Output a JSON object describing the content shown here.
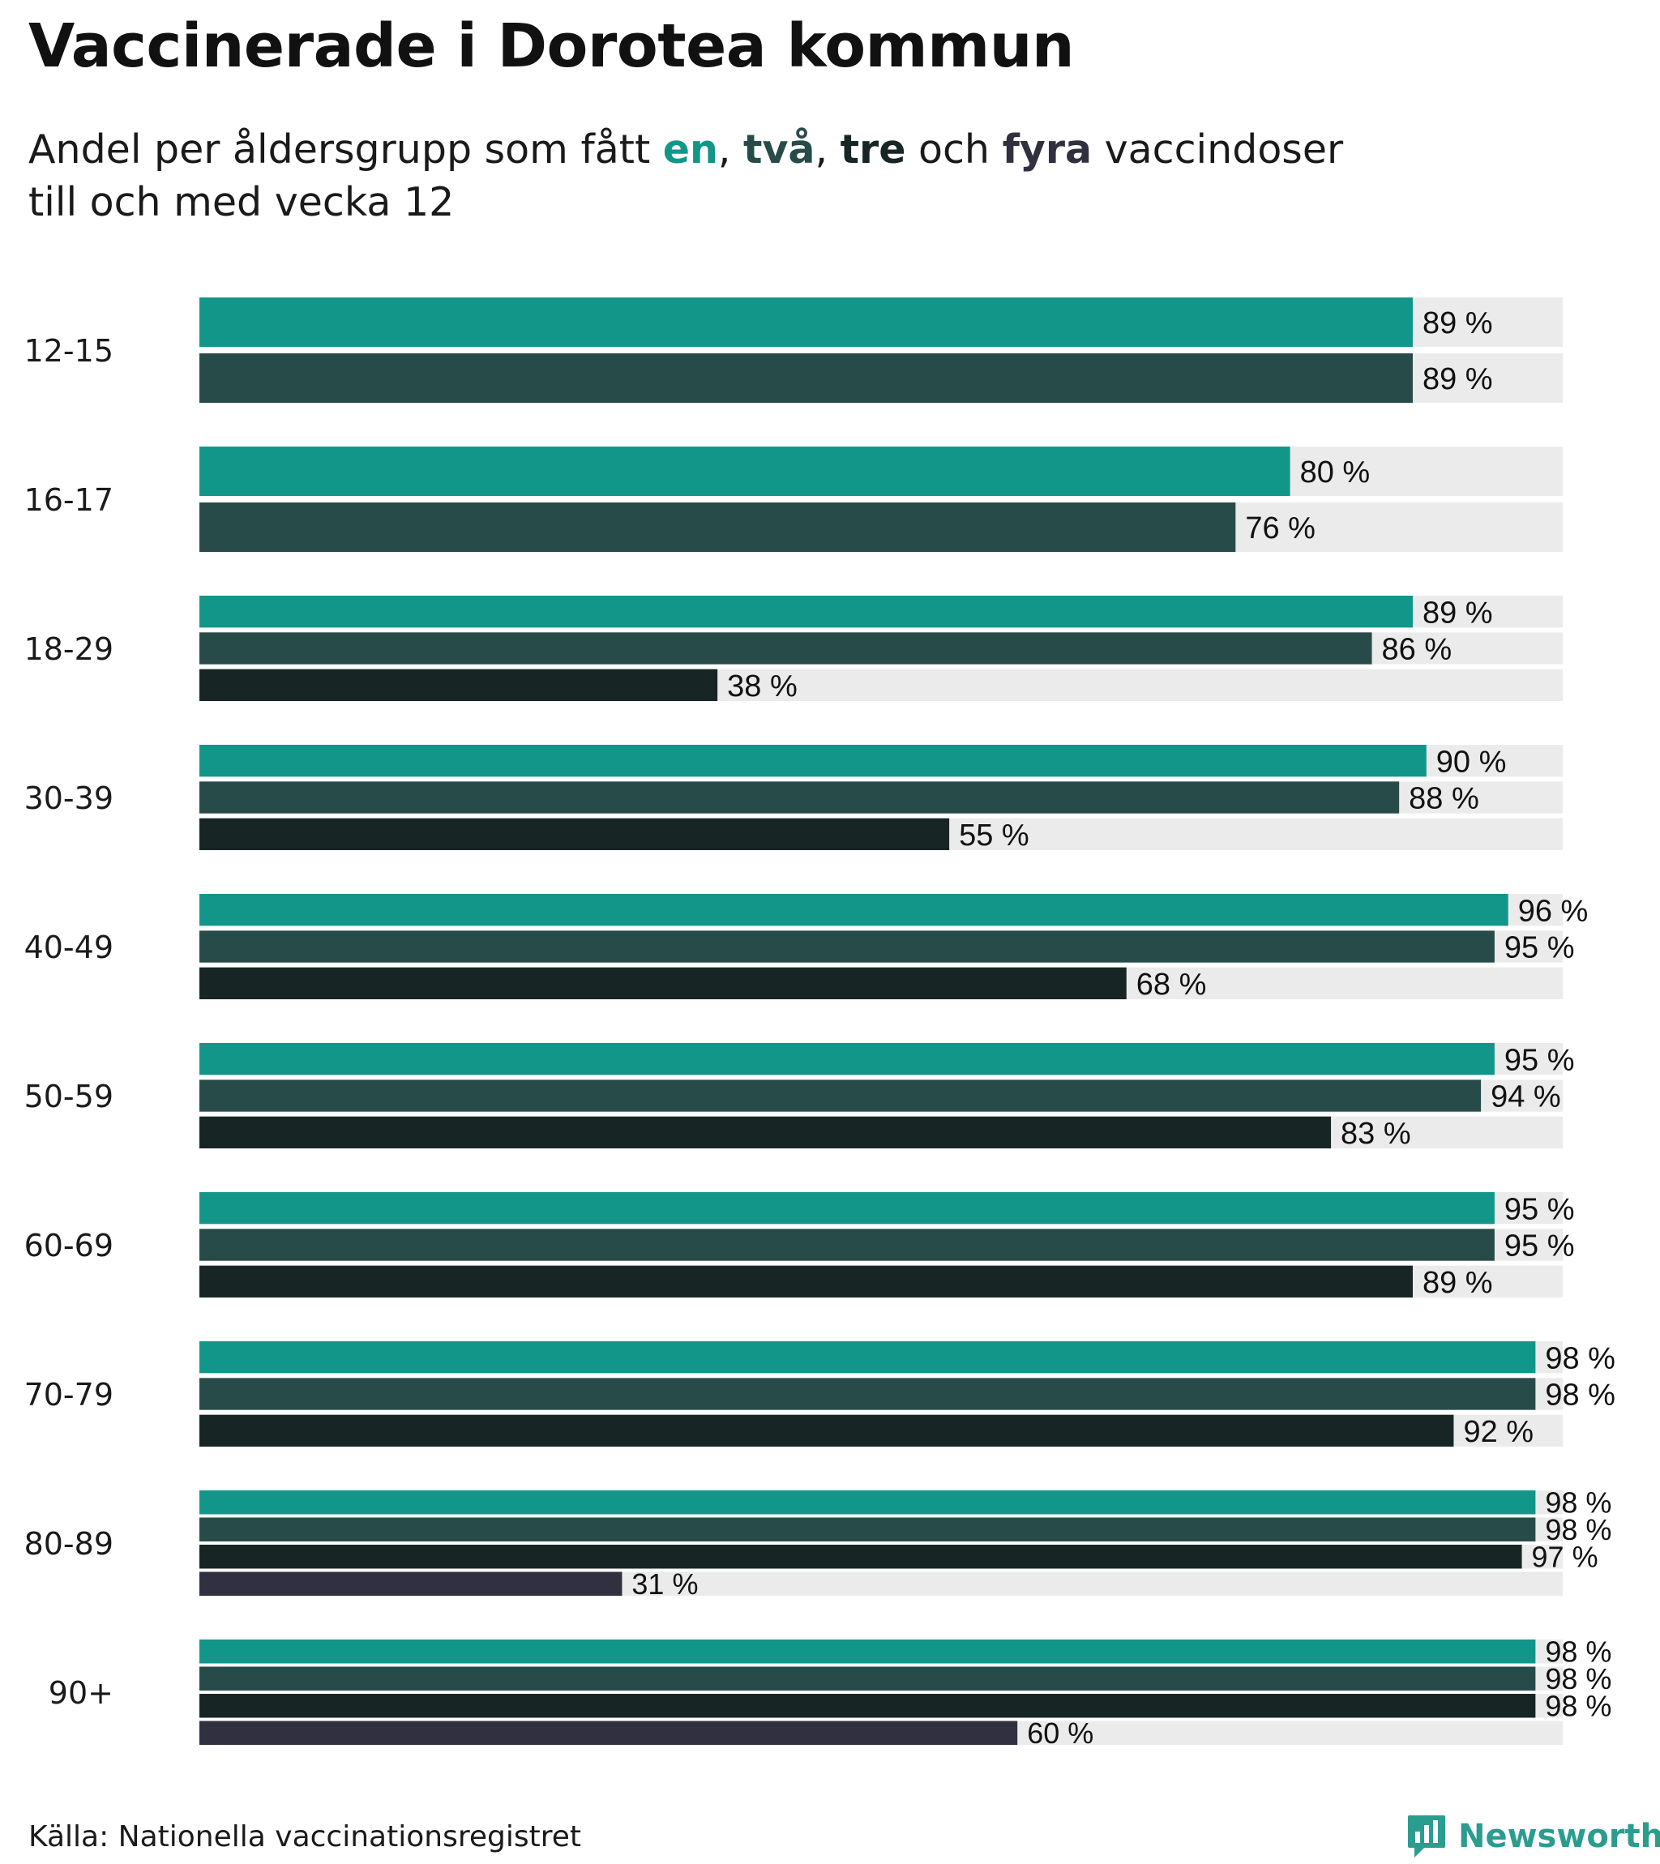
{
  "title": "Vaccinerade i Dorotea kommun",
  "subtitle": {
    "prefix": "Andel per åldersgrupp som fått ",
    "dose1": "en",
    "sep1": ", ",
    "dose2": "två",
    "sep2": ", ",
    "dose3": "tre",
    "mid": " och ",
    "dose4": "fyra",
    "suffix": " vaccindoser",
    "line2": "till och med vecka 12"
  },
  "source": "Källa: Nationella vaccinationsregistret",
  "brand": {
    "name": "Newsworthy",
    "icon": "bar-chart-logo-icon"
  },
  "colors": {
    "dose1": "#13968a",
    "dose2": "#274b49",
    "dose3": "#172625",
    "dose4": "#313040",
    "track": "#ebebeb"
  },
  "chart_data": {
    "type": "bar",
    "orientation": "horizontal",
    "xlim": [
      0,
      100
    ],
    "value_suffix": " %",
    "categories": [
      "12-15",
      "16-17",
      "18-29",
      "30-39",
      "40-49",
      "50-59",
      "60-69",
      "70-79",
      "80-89",
      "90+"
    ],
    "series": [
      {
        "name": "en",
        "values": [
          89,
          80,
          89,
          90,
          96,
          95,
          95,
          98,
          98,
          98
        ]
      },
      {
        "name": "två",
        "values": [
          89,
          76,
          86,
          88,
          95,
          94,
          95,
          98,
          98,
          98
        ]
      },
      {
        "name": "tre",
        "values": [
          null,
          null,
          38,
          55,
          68,
          83,
          89,
          92,
          97,
          98
        ]
      },
      {
        "name": "fyra",
        "values": [
          null,
          null,
          null,
          null,
          null,
          null,
          null,
          null,
          31,
          60
        ]
      }
    ]
  }
}
